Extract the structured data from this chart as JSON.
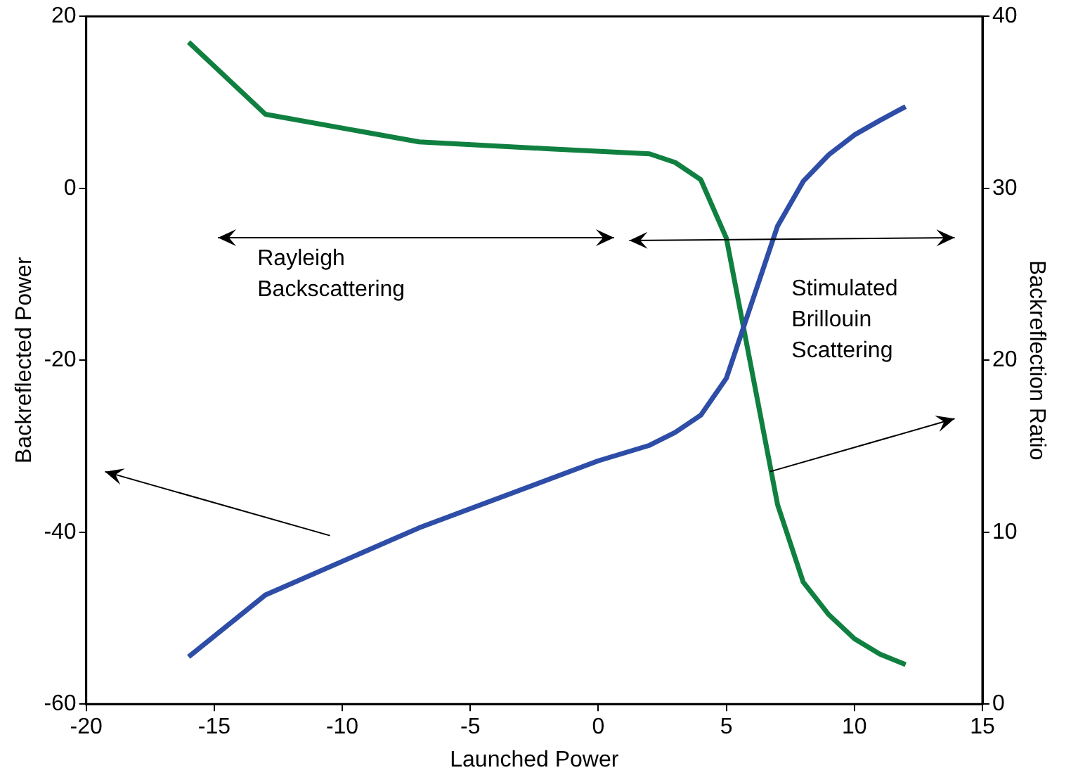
{
  "chart_data": {
    "type": "line",
    "xlabel": "Launched Power",
    "ylabel": "Backreflected Power",
    "y2label": "Backreflection Ratio",
    "x": [
      -16,
      -13,
      -7,
      0,
      2,
      3,
      4,
      5,
      7,
      8,
      9,
      10,
      11,
      12
    ],
    "series": [
      {
        "color": "#2e4da7",
        "values": [
          -54.5,
          -47.3,
          -39.5,
          -31.7,
          -29.9,
          -28.4,
          -26.4,
          -22.1,
          -4.4,
          0.8,
          3.9,
          6.2,
          7.9,
          9.5
        ]
      },
      {
        "color": "#108040",
        "axis": "y2",
        "x": [
          -16,
          -13,
          -7,
          -2,
          2,
          3,
          4,
          5,
          7,
          8,
          9,
          10,
          11,
          12
        ],
        "values": [
          38.5,
          34.3,
          32.7,
          32.3,
          32.0,
          31.5,
          30.5,
          27.1,
          11.6,
          7.1,
          5.2,
          3.8,
          2.9,
          2.3
        ]
      }
    ],
    "xlim": [
      -20,
      15
    ],
    "xticks": [
      -20,
      -15,
      -10,
      -5,
      0,
      5,
      10,
      15
    ],
    "ylim": [
      -60,
      20
    ],
    "yticks": [
      -60,
      -40,
      -20,
      0,
      20
    ],
    "y2lim": [
      0,
      40
    ],
    "y2ticks": [
      0,
      10,
      20,
      30,
      40
    ],
    "annotations": [
      "Rayleigh\nBackscattering",
      "Stimulated\nBrillouin\nScattering"
    ],
    "grid": false,
    "legend": false,
    "marker": "none",
    "line_style": "solid"
  }
}
